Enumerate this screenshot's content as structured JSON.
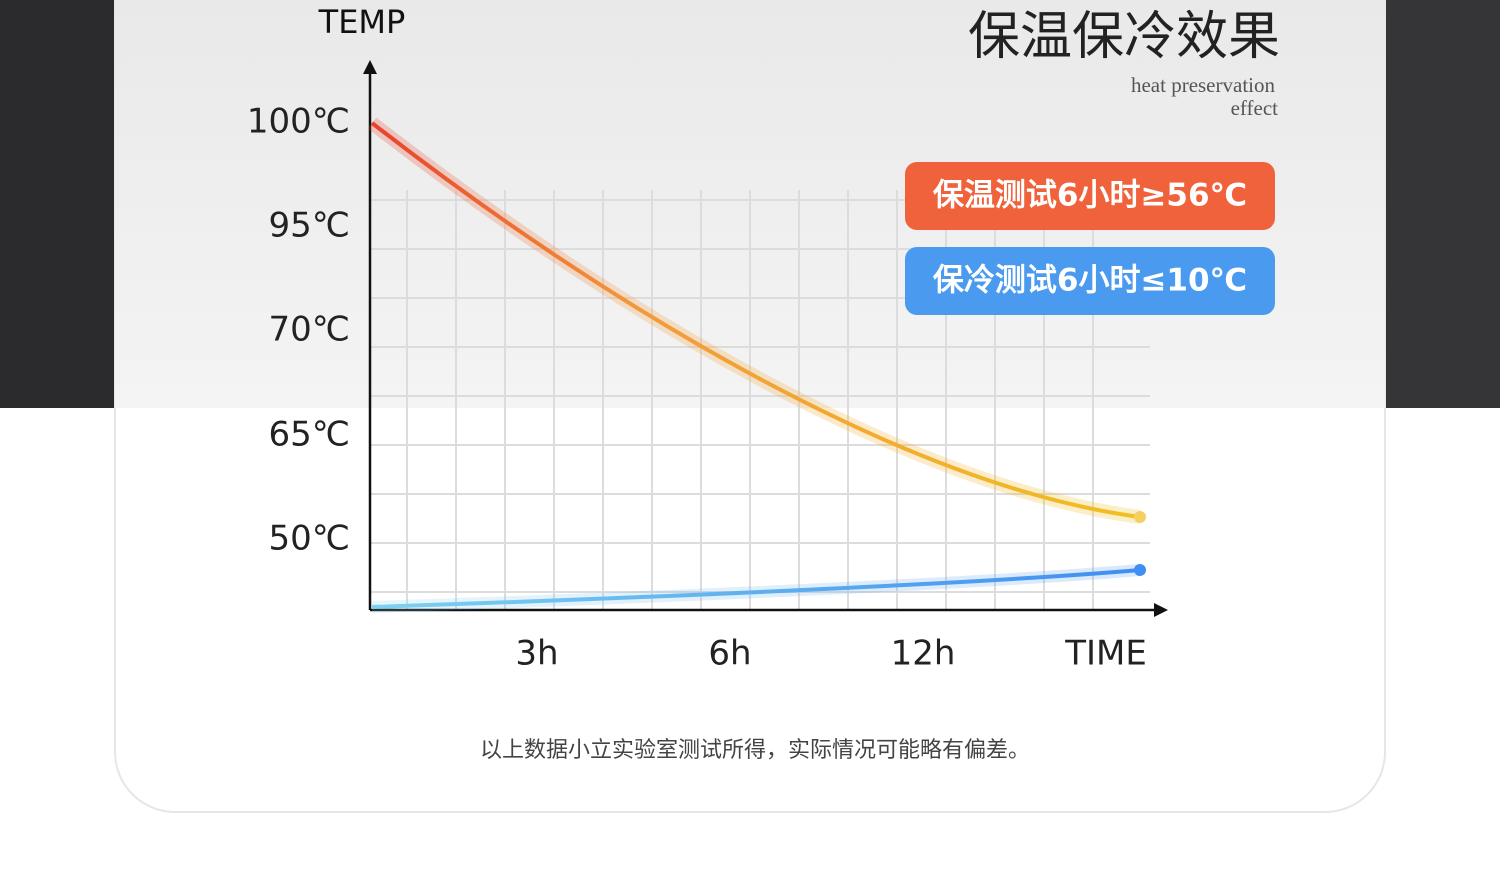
{
  "header": {
    "title": "保温保冷效果",
    "subtitle": [
      "heat preservation",
      "effect"
    ]
  },
  "badges": [
    "保温测试6小时≥56℃",
    "保冷测试6小时≤10℃"
  ],
  "axes": {
    "y_title": "TEMP",
    "y_labels": [
      "100℃",
      "95℃",
      "70℃",
      "65℃",
      "50℃"
    ],
    "x_labels": [
      "3h",
      "6h",
      "12h",
      "TIME"
    ]
  },
  "note": "以上数据小立实验室测试所得，实际情况可能略有偏差。"
}
